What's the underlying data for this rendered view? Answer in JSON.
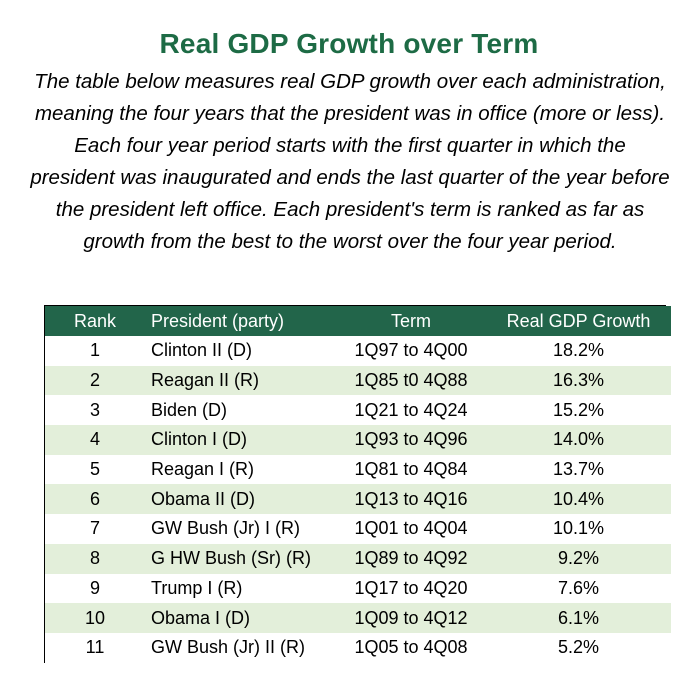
{
  "title": "Real GDP Growth over Term",
  "subtitle": "The table below measures real GDP growth over each administration, meaning the four years that the president was in office (more or less).  Each four year period starts with the first quarter in which the president was inaugurated and ends the  last quarter of the year before the president left office. Each president's term is ranked as far as growth from the best to the worst over the four year period.",
  "colors": {
    "title": "#1d6b45",
    "header_bg": "#22654a",
    "stripe": "#e3efda"
  },
  "table": {
    "headers": [
      "Rank",
      "President (party)",
      "Term",
      "Real GDP Growth"
    ],
    "rows": [
      {
        "rank": "1",
        "president": "Clinton II (D)",
        "term": "1Q97 to 4Q00",
        "growth": "18.2%"
      },
      {
        "rank": "2",
        "president": "Reagan II (R)",
        "term": "1Q85 t0 4Q88",
        "growth": "16.3%"
      },
      {
        "rank": "3",
        "president": "Biden (D)",
        "term": "1Q21 to 4Q24",
        "growth": "15.2%"
      },
      {
        "rank": "4",
        "president": "Clinton I (D)",
        "term": "1Q93 to 4Q96",
        "growth": "14.0%"
      },
      {
        "rank": "5",
        "president": "Reagan I (R)",
        "term": "1Q81 to 4Q84",
        "growth": "13.7%"
      },
      {
        "rank": "6",
        "president": "Obama II (D)",
        "term": "1Q13 to 4Q16",
        "growth": "10.4%"
      },
      {
        "rank": "7",
        "president": "GW Bush (Jr) I (R)",
        "term": "1Q01 to 4Q04",
        "growth": "10.1%"
      },
      {
        "rank": "8",
        "president": "G HW Bush (Sr) (R)",
        "term": "1Q89 to 4Q92",
        "growth": "9.2%"
      },
      {
        "rank": "9",
        "president": "Trump I (R)",
        "term": "1Q17 to 4Q20",
        "growth": "7.6%"
      },
      {
        "rank": "10",
        "president": "Obama I (D)",
        "term": "1Q09 to 4Q12",
        "growth": "6.1%"
      },
      {
        "rank": "11",
        "president": "GW Bush (Jr)  II (R)",
        "term": "1Q05 to 4Q08",
        "growth": "5.2%"
      }
    ]
  }
}
